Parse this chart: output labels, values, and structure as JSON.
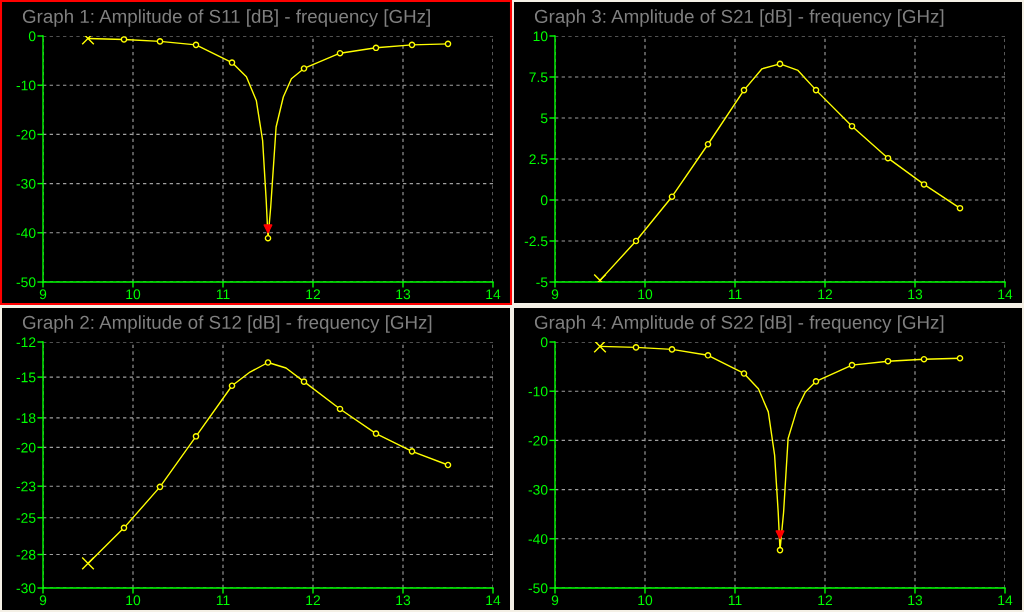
{
  "chart_data": [
    {
      "type": "line",
      "title": "Graph 1: Amplitude of S11 [dB] - frequency [GHz]",
      "xlim": [
        9,
        14
      ],
      "xticks": [
        9,
        10,
        11,
        12,
        13,
        14
      ],
      "ylim": [
        -50,
        0
      ],
      "yticks": [
        -50,
        -40,
        -30,
        -20,
        -10,
        0
      ],
      "grid": true,
      "line_style": "solid",
      "series": [
        {
          "type": "line",
          "marker": "none",
          "color": "#ffff00",
          "x": [
            9.5,
            9.9,
            10.3,
            10.7,
            11.1,
            11.26,
            11.37,
            11.44,
            11.48,
            11.5,
            11.53,
            11.59,
            11.67,
            11.76,
            11.9,
            12.3,
            12.7,
            13.1,
            13.5
          ],
          "values": [
            -0.5,
            -0.7,
            -1.1,
            -1.8,
            -5.4,
            -8.3,
            -13.1,
            -21.2,
            -33.4,
            -41.1,
            -34.8,
            -18.5,
            -12.4,
            -8.7,
            -6.6,
            -3.5,
            -2.4,
            -1.8,
            -1.6
          ]
        },
        {
          "type": "scatter",
          "marker": "circle",
          "color": "#ffff00",
          "x": [
            9.9,
            10.3,
            10.7,
            11.1,
            11.5,
            11.9,
            12.3,
            12.7,
            13.1,
            13.5
          ],
          "values": [
            -0.7,
            -1.1,
            -1.8,
            -5.4,
            -41.1,
            -6.6,
            -3.5,
            -2.4,
            -1.8,
            -1.6
          ]
        },
        {
          "type": "scatter",
          "marker": "cross",
          "color": "#ffff00",
          "x": [
            9.5
          ],
          "values": [
            -0.5
          ]
        },
        {
          "type": "scatter",
          "marker": "triangle",
          "color": "#ff0000",
          "x": [
            11.5
          ],
          "values": [
            -39.2
          ]
        }
      ]
    },
    {
      "type": "line",
      "title": "Graph 3: Amplitude of S21 [dB] - frequency [GHz]",
      "xlim": [
        9,
        14
      ],
      "xticks": [
        9,
        10,
        11,
        12,
        13,
        14
      ],
      "ylim": [
        -5,
        10
      ],
      "yticks": [
        -5,
        -2.5,
        0,
        2.5,
        5,
        7.5,
        10
      ],
      "grid": true,
      "line_style": "solid",
      "series": [
        {
          "type": "line",
          "marker": "none",
          "color": "#ffff00",
          "x": [
            9.5,
            9.9,
            10.3,
            10.7,
            11.1,
            11.3,
            11.5,
            11.7,
            11.9,
            12.3,
            12.7,
            13.1,
            13.5
          ],
          "values": [
            -4.9,
            -2.5,
            0.2,
            3.4,
            6.7,
            8.0,
            8.3,
            7.9,
            6.7,
            4.5,
            2.55,
            0.95,
            -0.5
          ]
        },
        {
          "type": "scatter",
          "marker": "circle",
          "color": "#ffff00",
          "x": [
            9.9,
            10.3,
            10.7,
            11.1,
            11.5,
            11.9,
            12.3,
            12.7,
            13.1,
            13.5
          ],
          "values": [
            -2.5,
            0.2,
            3.4,
            6.7,
            8.3,
            6.7,
            4.5,
            2.55,
            0.95,
            -0.5
          ]
        },
        {
          "type": "scatter",
          "marker": "cross",
          "color": "#ffff00",
          "x": [
            9.5
          ],
          "values": [
            -4.9
          ]
        }
      ]
    },
    {
      "type": "line",
      "title": "Graph 2: Amplitude of S12 [dB] - frequency [GHz]",
      "xlim": [
        9,
        14
      ],
      "xticks": [
        9,
        10,
        11,
        12,
        13,
        14
      ],
      "ylim": [
        -30,
        -12
      ],
      "yticks": [
        -30,
        {
          "value": -27.55,
          "label": "-28"
        },
        {
          "value": -24.86,
          "label": "-25"
        },
        {
          "value": -22.55,
          "label": "-23"
        },
        {
          "value": -19.71,
          "label": "-20"
        },
        {
          "value": -17.55,
          "label": "-18"
        },
        {
          "value": -14.57,
          "label": "-15"
        },
        -12
      ],
      "grid": true,
      "line_style": "solid",
      "series": [
        {
          "type": "line",
          "marker": "none",
          "color": "#ffff00",
          "x": [
            9.5,
            9.9,
            10.3,
            10.7,
            11.1,
            11.3,
            11.5,
            11.7,
            11.9,
            12.3,
            12.7,
            13.1,
            13.5
          ],
          "values": [
            -28.2,
            -25.6,
            -22.6,
            -18.9,
            -15.2,
            -14.2,
            -13.5,
            -13.9,
            -14.9,
            -16.9,
            -18.7,
            -20.0,
            -21.0
          ]
        },
        {
          "type": "scatter",
          "marker": "circle",
          "color": "#ffff00",
          "x": [
            9.9,
            10.3,
            10.7,
            11.1,
            11.5,
            11.9,
            12.3,
            12.7,
            13.1,
            13.5
          ],
          "values": [
            -25.6,
            -22.6,
            -18.9,
            -15.2,
            -13.5,
            -14.9,
            -16.9,
            -18.7,
            -20.0,
            -21.0
          ]
        },
        {
          "type": "scatter",
          "marker": "cross",
          "color": "#ffff00",
          "x": [
            9.5
          ],
          "values": [
            -28.2
          ]
        }
      ]
    },
    {
      "type": "line",
      "title": "Graph 4: Amplitude of S22 [dB] - frequency [GHz]",
      "xlim": [
        9,
        14
      ],
      "xticks": [
        9,
        10,
        11,
        12,
        13,
        14
      ],
      "ylim": [
        -50,
        0
      ],
      "yticks": [
        -50,
        -40,
        -30,
        -20,
        -10,
        0
      ],
      "grid": true,
      "line_style": "solid",
      "series": [
        {
          "type": "line",
          "marker": "none",
          "color": "#ffff00",
          "x": [
            9.5,
            9.9,
            10.3,
            10.7,
            11.1,
            11.26,
            11.37,
            11.44,
            11.48,
            11.5,
            11.54,
            11.59,
            11.69,
            11.78,
            11.9,
            12.3,
            12.7,
            13.1,
            13.5
          ],
          "values": [
            -0.9,
            -1.1,
            -1.5,
            -2.7,
            -6.4,
            -9.5,
            -14.2,
            -23,
            -34.6,
            -42.3,
            -34.6,
            -19.6,
            -13.6,
            -10.2,
            -8.0,
            -4.7,
            -3.9,
            -3.5,
            -3.3
          ]
        },
        {
          "type": "scatter",
          "marker": "circle",
          "color": "#ffff00",
          "x": [
            9.9,
            10.3,
            10.7,
            11.1,
            11.5,
            11.9,
            12.3,
            12.7,
            13.1,
            13.5
          ],
          "values": [
            -1.1,
            -1.5,
            -2.7,
            -6.4,
            -42.3,
            -8.0,
            -4.7,
            -3.9,
            -3.5,
            -3.3
          ]
        },
        {
          "type": "scatter",
          "marker": "cross",
          "color": "#ffff00",
          "x": [
            9.5
          ],
          "values": [
            -0.9
          ]
        },
        {
          "type": "scatter",
          "marker": "triangle",
          "color": "#ff0000",
          "x": [
            11.5
          ],
          "values": [
            -39.2
          ]
        }
      ]
    }
  ]
}
